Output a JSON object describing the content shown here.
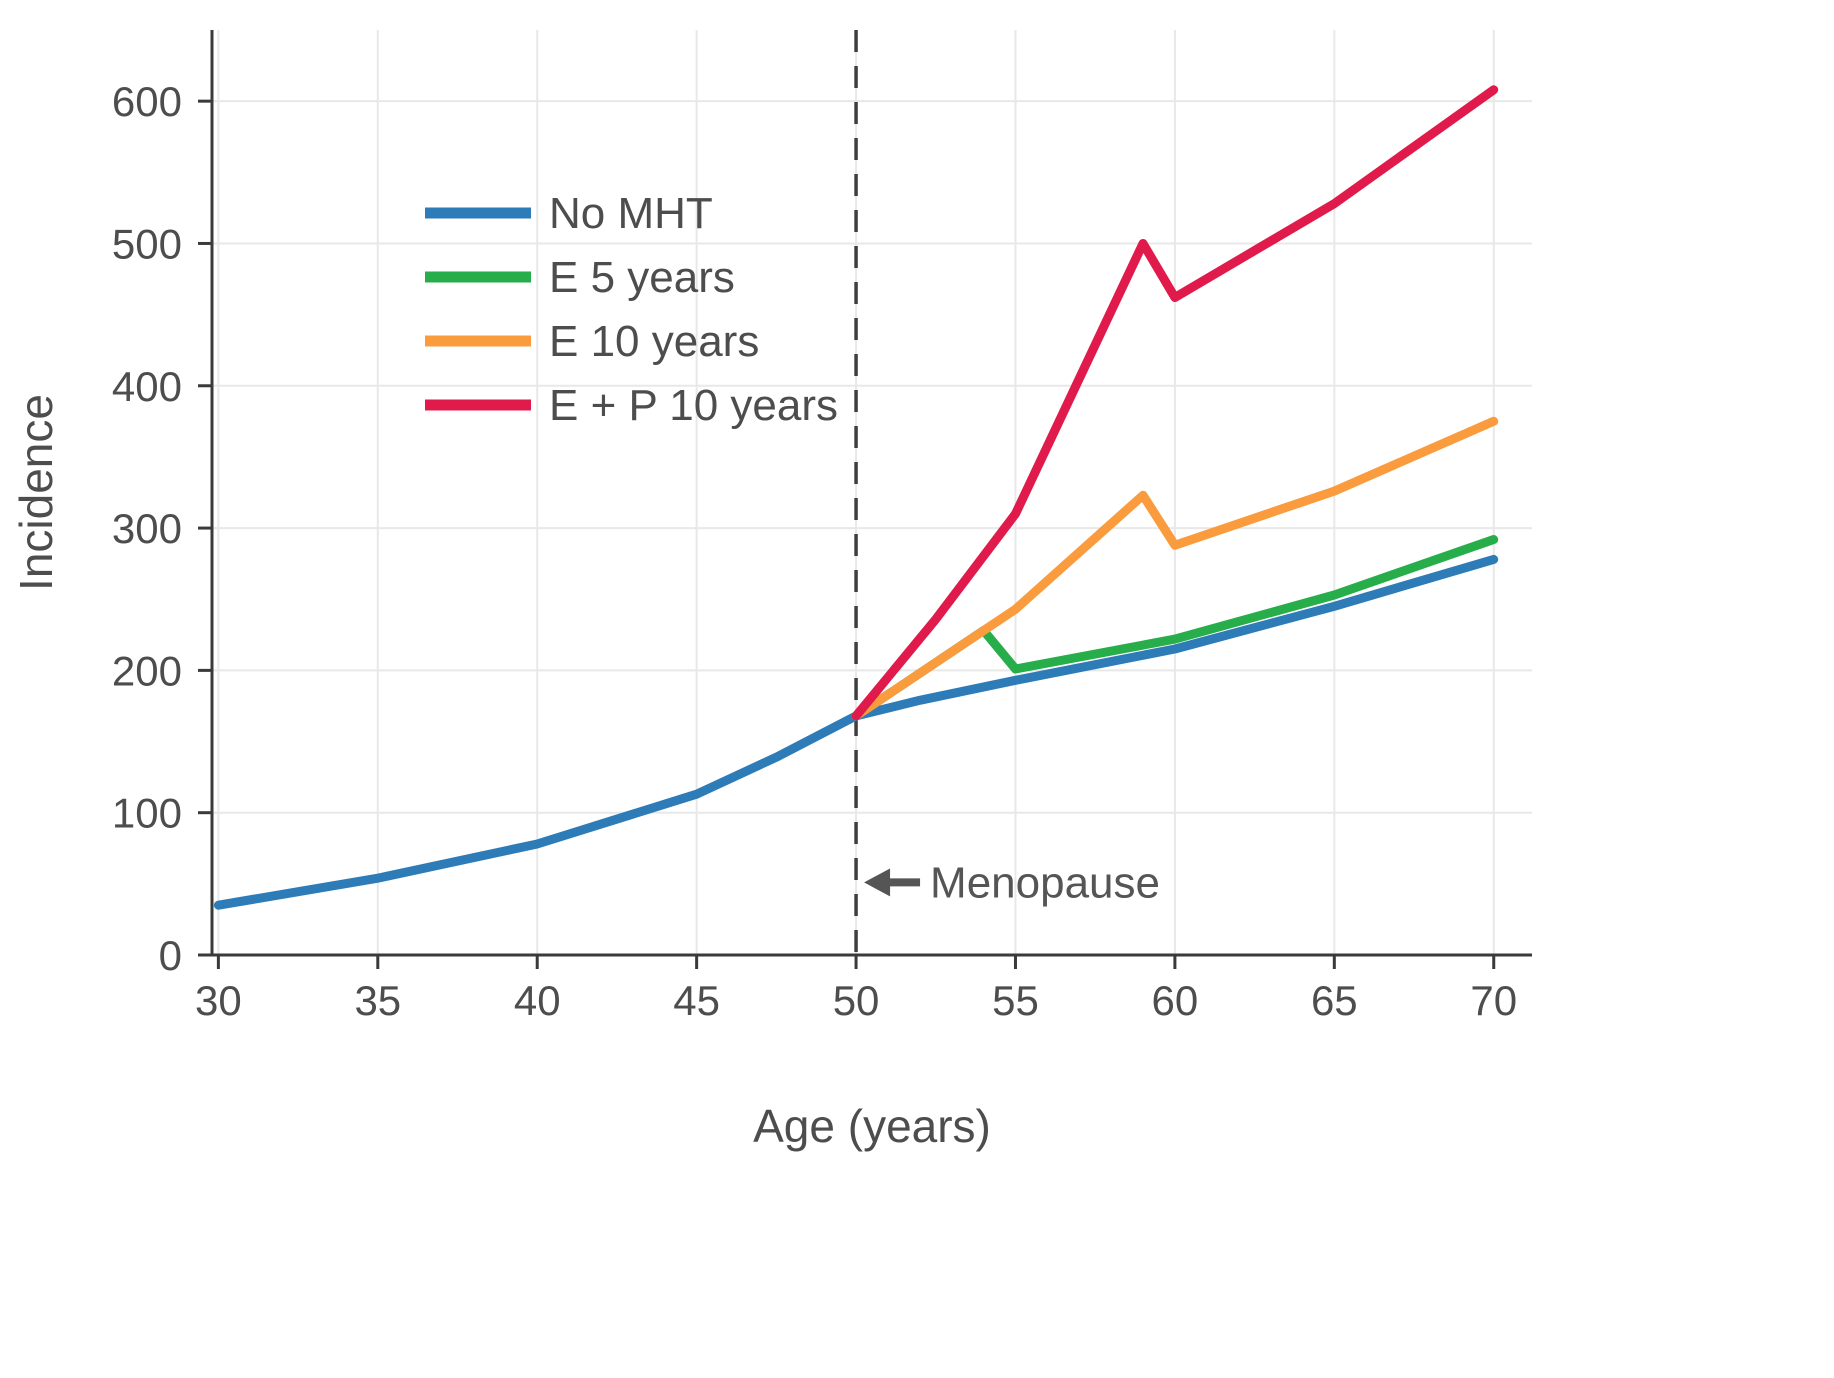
{
  "chart_data": {
    "type": "line",
    "title": "",
    "xlabel": "Age (years)",
    "ylabel": "Incidence",
    "xlim": [
      29.8,
      71.2
    ],
    "ylim": [
      0,
      650
    ],
    "xticks": [
      30,
      35,
      40,
      45,
      50,
      55,
      60,
      65,
      70
    ],
    "yticks": [
      0,
      100,
      200,
      300,
      400,
      500,
      600
    ],
    "grid": true,
    "legend": {
      "position": "upper-left"
    },
    "vline": {
      "x": 50,
      "style": "dashed",
      "color": "#3f3f3f"
    },
    "annotation": {
      "text": "Menopause",
      "arrow": "left",
      "x": 50,
      "y": 51
    },
    "series": [
      {
        "name": "No MHT",
        "color": "#2d7cb8",
        "points": [
          [
            30,
            35
          ],
          [
            35,
            54
          ],
          [
            40,
            78
          ],
          [
            45,
            113
          ],
          [
            47.5,
            139
          ],
          [
            50,
            168
          ],
          [
            52,
            179
          ],
          [
            55,
            193
          ],
          [
            60,
            215
          ],
          [
            65,
            245
          ],
          [
            70,
            278
          ]
        ]
      },
      {
        "name": "E 5 years",
        "color": "#27ae4b",
        "points": [
          [
            50,
            168
          ],
          [
            54,
            228
          ],
          [
            55,
            201
          ],
          [
            60,
            222
          ],
          [
            65,
            253
          ],
          [
            70,
            292
          ]
        ]
      },
      {
        "name": "E 10 years",
        "color": "#fa9b3d",
        "points": [
          [
            50,
            168
          ],
          [
            55,
            243
          ],
          [
            59,
            323
          ],
          [
            60,
            288
          ],
          [
            65,
            326
          ],
          [
            70,
            375
          ]
        ]
      },
      {
        "name": "E + P 10 years",
        "color": "#e01a4b",
        "points": [
          [
            50,
            168
          ],
          [
            52.5,
            236
          ],
          [
            55,
            310
          ],
          [
            59,
            500
          ],
          [
            60,
            462
          ],
          [
            65,
            528
          ],
          [
            70,
            608
          ]
        ]
      }
    ],
    "style": {
      "grid_color": "#e8e8e8",
      "axis_color": "#3a3a3a",
      "text_color": "#4d4d4d",
      "annotation_color": "#555555",
      "background": "#ffffff"
    }
  }
}
